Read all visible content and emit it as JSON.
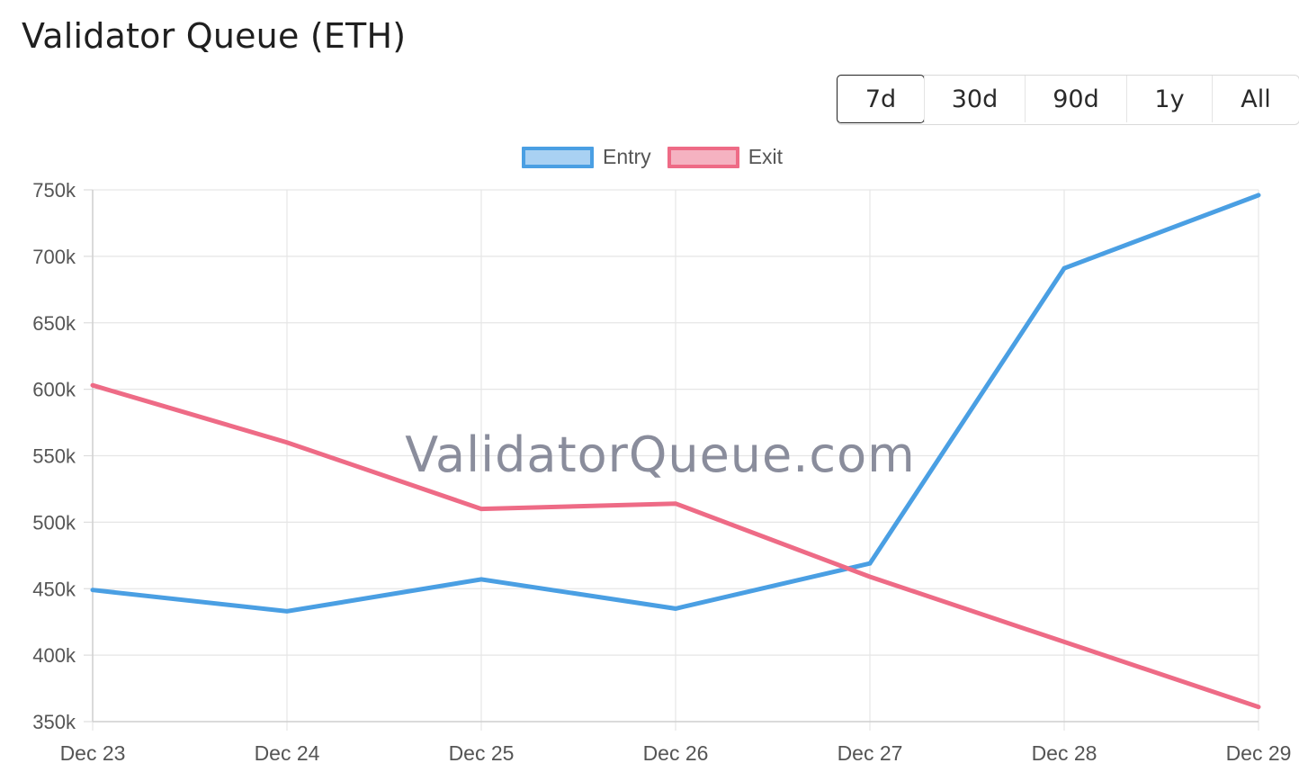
{
  "page": {
    "title": "Validator Queue (ETH)"
  },
  "range_buttons": [
    {
      "label": "7d",
      "active": true
    },
    {
      "label": "30d",
      "active": false
    },
    {
      "label": "90d",
      "active": false
    },
    {
      "label": "1y",
      "active": false
    },
    {
      "label": "All",
      "active": false
    }
  ],
  "legend": [
    {
      "label": "Entry",
      "color": "#4a9fe3",
      "fill": "#a9d1f3"
    },
    {
      "label": "Exit",
      "color": "#ee6b86",
      "fill": "#f5b2c1"
    }
  ],
  "watermark": "ValidatorQueue.com",
  "chart_data": {
    "type": "line",
    "categories": [
      "Dec 23",
      "Dec 24",
      "Dec 25",
      "Dec 26",
      "Dec 27",
      "Dec 28",
      "Dec 29"
    ],
    "series": [
      {
        "name": "Entry",
        "color": "#4a9fe3",
        "values": [
          449000,
          433000,
          457000,
          435000,
          469000,
          691000,
          746000
        ]
      },
      {
        "name": "Exit",
        "color": "#ee6b86",
        "values": [
          603000,
          560000,
          510000,
          514000,
          459000,
          410000,
          361000
        ]
      }
    ],
    "y_ticks": [
      "750k",
      "700k",
      "650k",
      "600k",
      "550k",
      "500k",
      "450k",
      "400k",
      "350k"
    ],
    "ylim": [
      350000,
      750000
    ],
    "grid": true,
    "legend_position": "top-center",
    "title": "",
    "xlabel": "",
    "ylabel": ""
  }
}
